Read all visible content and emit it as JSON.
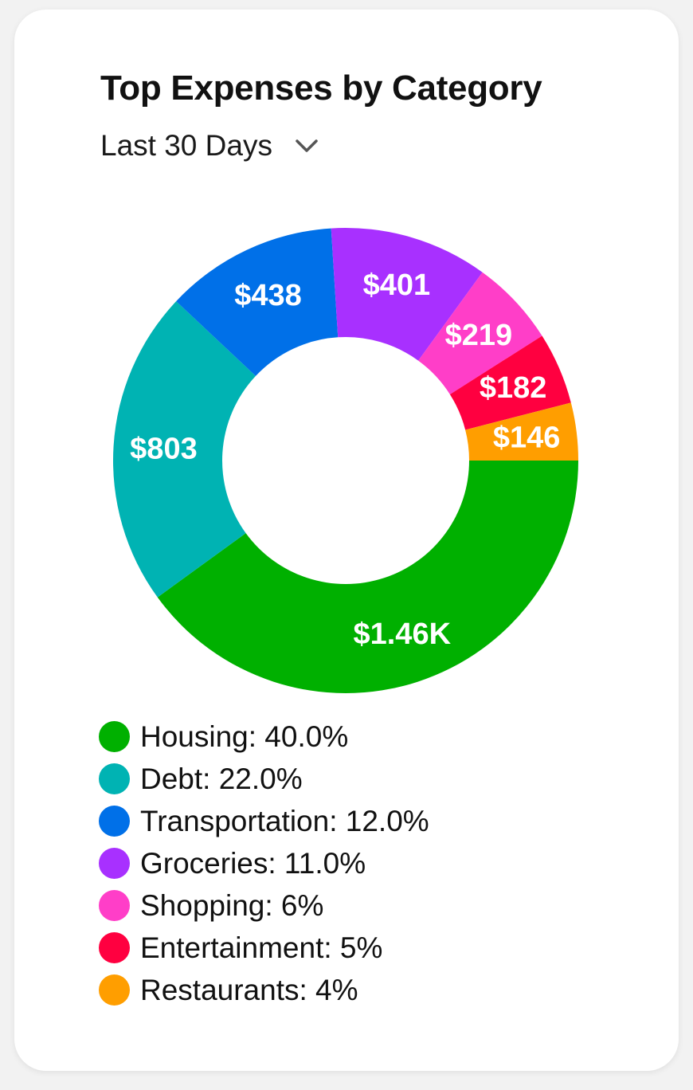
{
  "card": {
    "title": "Top Expenses by Category",
    "period_selector": {
      "selected": "Last 30 Days",
      "icon": "chevron-down-icon"
    }
  },
  "chart_data": {
    "type": "pie",
    "style": "donut",
    "title": "Top Expenses by Category",
    "subtitle": "Last 30 Days",
    "slices": [
      {
        "category": "Housing",
        "value_label": "$1.46K",
        "percent": 40.0,
        "legend_label": "Housing: 40.0%",
        "color": "#00b000"
      },
      {
        "category": "Debt",
        "value_label": "$803",
        "percent": 22.0,
        "legend_label": "Debt: 22.0%",
        "color": "#00b3b3"
      },
      {
        "category": "Transportation",
        "value_label": "$438",
        "percent": 12.0,
        "legend_label": "Transportation: 12.0%",
        "color": "#0070e8"
      },
      {
        "category": "Groceries",
        "value_label": "$401",
        "percent": 11.0,
        "legend_label": "Groceries: 11.0%",
        "color": "#a830ff"
      },
      {
        "category": "Shopping",
        "value_label": "$219",
        "percent": 6,
        "legend_label": "Shopping: 6%",
        "color": "#ff3ec8"
      },
      {
        "category": "Entertainment",
        "value_label": "$182",
        "percent": 5,
        "legend_label": "Entertainment: 5%",
        "color": "#ff0040"
      },
      {
        "category": "Restaurants",
        "value_label": "$146",
        "percent": 4,
        "legend_label": "Restaurants: 4%",
        "color": "#ff9e00"
      }
    ],
    "legend_position": "bottom",
    "label_color": "#ffffff",
    "background": "#ffffff"
  }
}
